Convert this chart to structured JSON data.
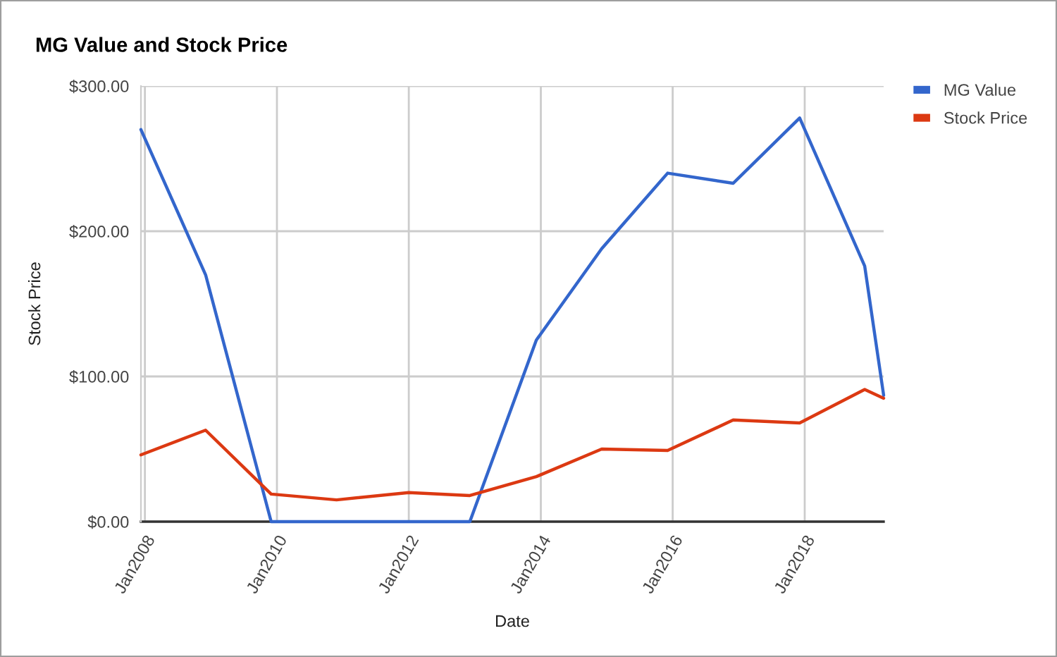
{
  "chart_data": {
    "type": "line",
    "title": "MG Value and Stock Price",
    "xlabel": "Date",
    "ylabel": "Stock Price",
    "x": [
      "2007-12-10",
      "2008-12-02",
      "2009-11-30",
      "2010-11-27",
      "2012-01-01",
      "2012-12-04",
      "2013-12-07",
      "2014-12-04",
      "2015-12-04",
      "2016-12-01",
      "2017-12-04",
      "2018-11-29",
      "2019-03-14"
    ],
    "series": [
      {
        "name": "MG Value",
        "color": "#3366cc",
        "values": [
          270,
          170,
          0,
          0,
          0,
          0,
          125,
          188,
          240,
          233,
          278,
          176,
          87
        ]
      },
      {
        "name": "Stock Price",
        "color": "#dc3912",
        "values": [
          46,
          63,
          19,
          15,
          20,
          18,
          31,
          50,
          49,
          70,
          68,
          91,
          85
        ]
      }
    ],
    "xlim": [
      "2007-12-10",
      "2019-03-14"
    ],
    "xticks": [
      {
        "value": "2008-01-01",
        "label": "Jan2008"
      },
      {
        "value": "2010-01-01",
        "label": "Jan2010"
      },
      {
        "value": "2012-01-01",
        "label": "Jan2012"
      },
      {
        "value": "2014-01-01",
        "label": "Jan2014"
      },
      {
        "value": "2016-01-01",
        "label": "Jan2016"
      },
      {
        "value": "2018-01-01",
        "label": "Jan2018"
      }
    ],
    "ylim": [
      0,
      300
    ],
    "yticks": [
      {
        "value": 0,
        "label": "$0.00"
      },
      {
        "value": 100,
        "label": "$100.00"
      },
      {
        "value": 200,
        "label": "$200.00"
      },
      {
        "value": 300,
        "label": "$300.00"
      }
    ],
    "grid": true,
    "legend": "top right",
    "marker": "none",
    "line_style": "solid"
  }
}
